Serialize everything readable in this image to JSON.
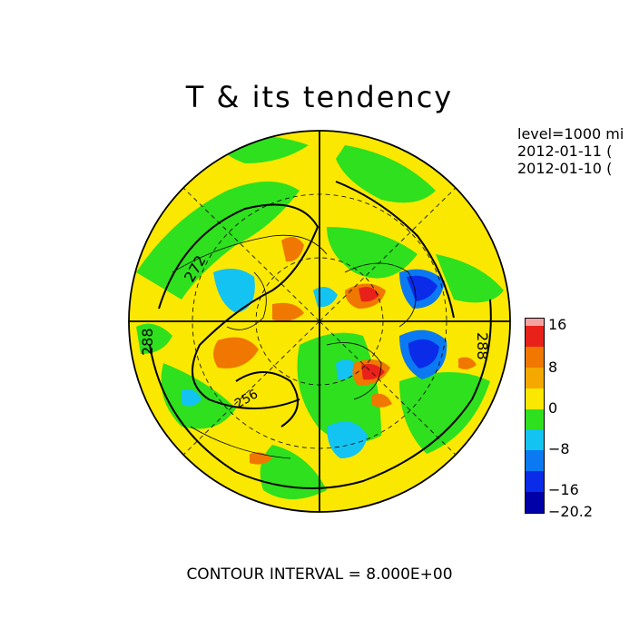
{
  "title": "T & its tendency",
  "meta": {
    "level": "level=1000 mi",
    "time1": "2012-01-11 (",
    "time2": "2012-01-10 ("
  },
  "contour_labels": [
    "272",
    "288",
    "288",
    "256"
  ],
  "colorbar": {
    "labels": [
      "16",
      "8",
      "0",
      "−8",
      "−16",
      "−20.2"
    ],
    "colors": [
      "#f4a3a3",
      "#e8221a",
      "#f07700",
      "#f4a800",
      "#fbe800",
      "#2ee01d",
      "#13c3f2",
      "#0a79f2",
      "#0a2be8",
      "#0000a8"
    ]
  },
  "footer": "CONTOUR INTERVAL = 8.000E+00"
}
